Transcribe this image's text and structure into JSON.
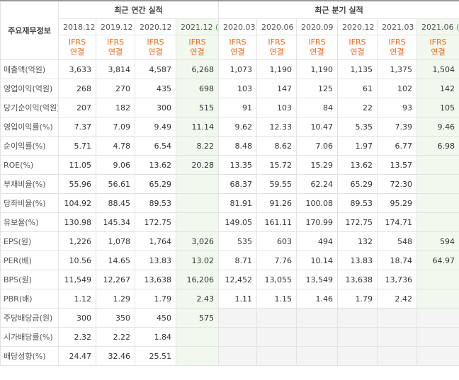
{
  "table": {
    "corner": "주요재무정보",
    "groups": [
      {
        "label": "최근 연간 실적",
        "span": 4
      },
      {
        "label": "최근 분기 실적",
        "span": 6
      }
    ],
    "columns": [
      {
        "period": "2018.12",
        "estimate": null,
        "standard": "IFRS",
        "basis": "연결"
      },
      {
        "period": "2019.12",
        "estimate": null,
        "standard": "IFRS",
        "basis": "연결"
      },
      {
        "period": "2020.12",
        "estimate": null,
        "standard": "IFRS",
        "basis": "연결"
      },
      {
        "period": "2021.12",
        "estimate": "(E)",
        "standard": "IFRS",
        "basis": "연결"
      },
      {
        "period": "2020.03",
        "estimate": null,
        "standard": "IFRS",
        "basis": "연결"
      },
      {
        "period": "2020.06",
        "estimate": null,
        "standard": "IFRS",
        "basis": "연결"
      },
      {
        "period": "2020.09",
        "estimate": null,
        "standard": "IFRS",
        "basis": "연결"
      },
      {
        "period": "2020.12",
        "estimate": null,
        "standard": "IFRS",
        "basis": "연결"
      },
      {
        "period": "2021.03",
        "estimate": null,
        "standard": "IFRS",
        "basis": "연결"
      },
      {
        "period": "2021.06",
        "estimate": "(E)",
        "standard": "IFRS",
        "basis": "연결"
      }
    ],
    "rows": [
      {
        "label": "매출액(억원)",
        "cells": [
          "3,633",
          "3,814",
          "4,587",
          "6,268",
          "1,073",
          "1,190",
          "1,190",
          "1,135",
          "1,375",
          "1,504"
        ]
      },
      {
        "label": "영업이익(억원)",
        "cells": [
          "268",
          "270",
          "435",
          "698",
          "103",
          "147",
          "125",
          "61",
          "102",
          "142"
        ]
      },
      {
        "label": "당기순이익(억원)",
        "cells": [
          "207",
          "182",
          "300",
          "515",
          "91",
          "103",
          "84",
          "22",
          "93",
          "105"
        ]
      },
      {
        "label": "영업이익률(%)",
        "cells": [
          "7.37",
          "7.09",
          "9.49",
          "11.14",
          "9.62",
          "12.33",
          "10.47",
          "5.35",
          "7.39",
          "9.46"
        ]
      },
      {
        "label": "순이익률(%)",
        "cells": [
          "5.71",
          "4.78",
          "6.54",
          "8.22",
          "8.48",
          "8.62",
          "7.06",
          "1.97",
          "6.77",
          "6.98"
        ]
      },
      {
        "label": "ROE(%)",
        "cells": [
          "11.05",
          "9.06",
          "13.62",
          "20.28",
          "13.35",
          "15.72",
          "15.29",
          "13.62",
          "13.57",
          null
        ]
      },
      {
        "label": "부채비율(%)",
        "cells": [
          "55.96",
          "56.61",
          "65.29",
          null,
          "68.37",
          "59.55",
          "62.24",
          "65.29",
          "72.30",
          null
        ]
      },
      {
        "label": "당좌비율(%)",
        "cells": [
          "104.92",
          "88.45",
          "89.53",
          null,
          "81.91",
          "91.26",
          "100.08",
          "89.53",
          "95.29",
          null
        ]
      },
      {
        "label": "유보율(%)",
        "cells": [
          "130.98",
          "145.34",
          "172.75",
          null,
          "149.05",
          "161.11",
          "170.99",
          "172.75",
          "174.71",
          null
        ]
      },
      {
        "label": "EPS(원)",
        "cells": [
          "1,226",
          "1,078",
          "1,764",
          "3,026",
          "535",
          "603",
          "494",
          "132",
          "548",
          "594"
        ]
      },
      {
        "label": "PER(배)",
        "cells": [
          "10.56",
          "14.65",
          "13.83",
          "13.02",
          "8.71",
          "7.76",
          "10.14",
          "13.83",
          "18.74",
          "64.97"
        ]
      },
      {
        "label": "BPS(원)",
        "cells": [
          "11,549",
          "12,267",
          "13,638",
          "16,206",
          "12,452",
          "13,055",
          "13,549",
          "13,638",
          "13,736",
          null
        ]
      },
      {
        "label": "PBR(배)",
        "cells": [
          "1.12",
          "1.29",
          "1.79",
          "2.43",
          "1.11",
          "1.15",
          "1.46",
          "1.79",
          "2.42",
          null
        ]
      },
      {
        "label": "주당배당금(원)",
        "cells": [
          "300",
          "350",
          "450",
          "575",
          null,
          null,
          null,
          null,
          null,
          null
        ]
      },
      {
        "label": "시가배당률(%)",
        "cells": [
          "2.32",
          "2.22",
          "1.84",
          null,
          null,
          null,
          null,
          null,
          null,
          null
        ]
      },
      {
        "label": "배당성향(%)",
        "cells": [
          "24.47",
          "32.46",
          "25.51",
          null,
          null,
          null,
          null,
          null,
          null,
          null
        ]
      }
    ]
  }
}
